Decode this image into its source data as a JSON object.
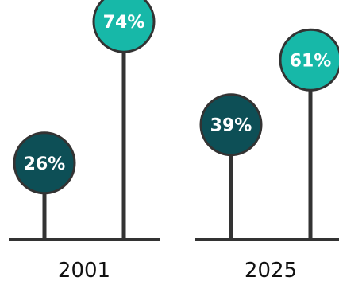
{
  "chart_data": {
    "type": "lollipop",
    "title": "",
    "xlabel": "",
    "ylabel": "",
    "ylim": [
      0,
      100
    ],
    "grid": false,
    "categories": [
      "2001",
      "2025"
    ],
    "series": [
      {
        "values": [
          26,
          39
        ],
        "color": "#0d4f56"
      },
      {
        "values": [
          74,
          61
        ],
        "color": "#17b8a8"
      }
    ],
    "data_labels": [
      [
        "26%",
        "39%"
      ],
      [
        "74%",
        "61%"
      ]
    ]
  }
}
